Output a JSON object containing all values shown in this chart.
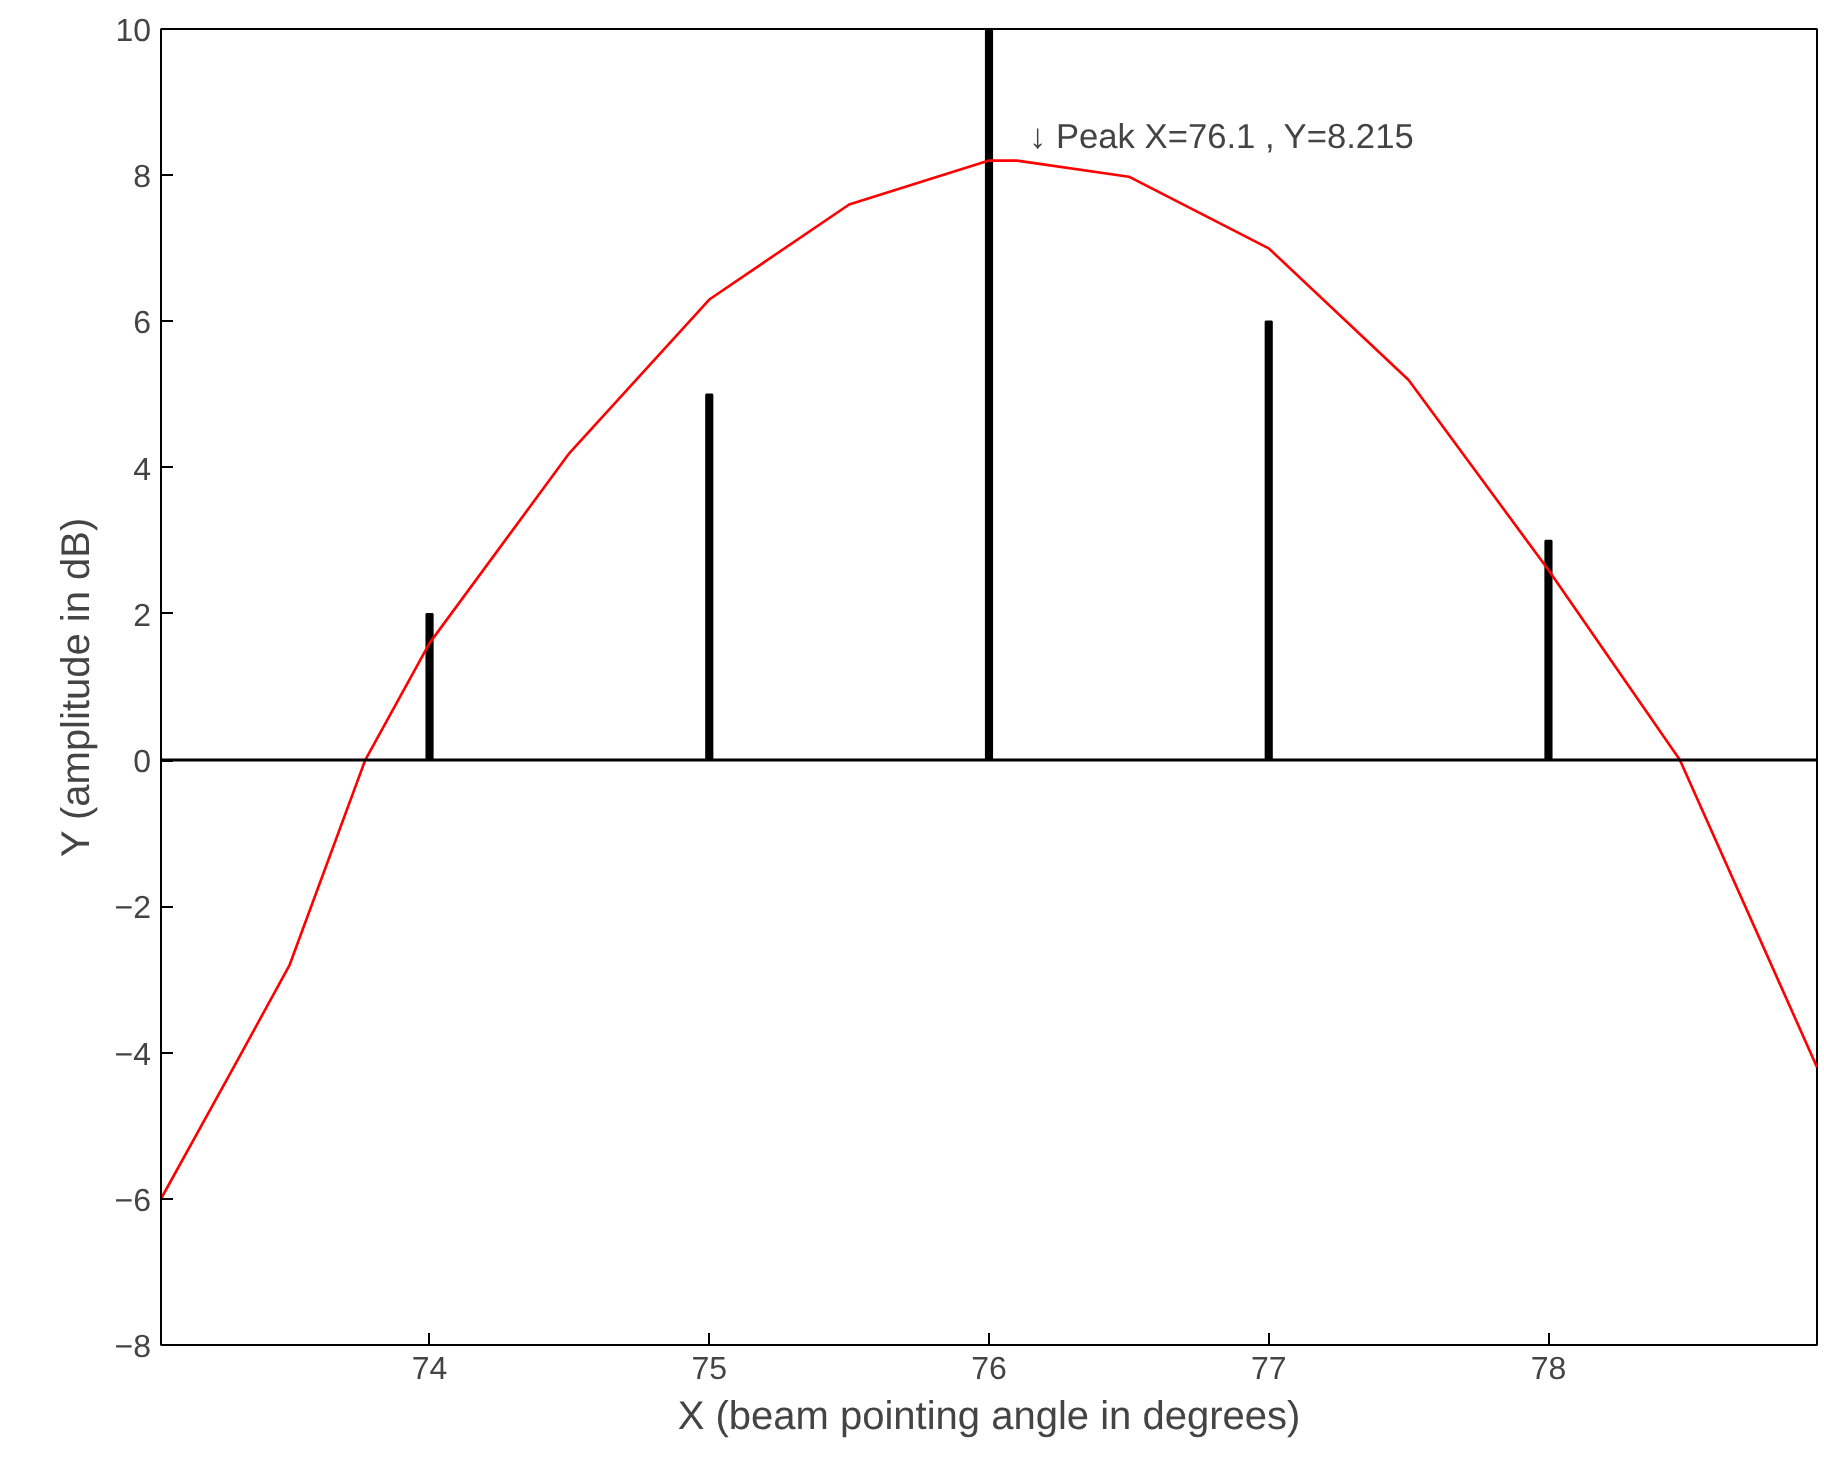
{
  "chart_data": {
    "type": "bar",
    "xlabel": "X (beam pointing angle in degrees)",
    "ylabel": "Y (amplitude in dB)",
    "xlim": [
      73.04,
      78.96
    ],
    "ylim": [
      -8,
      10
    ],
    "xticks": [
      74,
      75,
      76,
      77,
      78
    ],
    "yticks": [
      -8,
      -6,
      -4,
      -2,
      0,
      2,
      4,
      6,
      8,
      10
    ],
    "grid": false,
    "ref_lines": [
      {
        "axis": "y",
        "value": 0,
        "color": "#000000"
      }
    ],
    "annotations": [
      {
        "text": "↓ Peak X=76.1 , Y=8.215",
        "x": 76.1,
        "y": 8.215
      }
    ],
    "series": [
      {
        "color": "#000000",
        "x": [
          74,
          75,
          76,
          77,
          78
        ],
        "values": [
          2,
          5,
          10,
          6,
          3
        ]
      },
      {
        "type": "line",
        "color": "#ff0000",
        "line_style": "solid",
        "x": [
          73.04,
          73.3,
          73.5,
          73.77,
          74.0,
          74.5,
          75.0,
          75.5,
          76.0,
          76.1,
          76.5,
          77.0,
          77.5,
          78.0,
          78.47,
          78.96
        ],
        "values": [
          -6.0,
          -4.2,
          -2.8,
          0,
          1.6,
          4.2,
          6.3,
          7.6,
          8.2,
          8.2,
          7.98,
          7.0,
          5.2,
          2.6,
          0,
          -4.2
        ]
      }
    ]
  }
}
